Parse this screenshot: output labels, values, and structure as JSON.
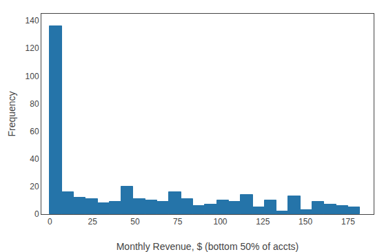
{
  "chart_data": {
    "type": "histogram",
    "bins": [
      0,
      7,
      14,
      21,
      28,
      35,
      42,
      49,
      56,
      63,
      70,
      77,
      84,
      91,
      98,
      105,
      112,
      119,
      126,
      133,
      140,
      147,
      154,
      161,
      168,
      175,
      182
    ],
    "values": [
      136,
      16,
      12,
      11,
      8,
      9,
      20,
      11,
      10,
      9,
      16,
      11,
      6,
      7,
      10,
      9,
      14,
      5,
      10,
      2,
      13,
      3,
      9,
      7,
      6,
      5
    ],
    "color": "#2574a9",
    "xlabel": "Monthly Revenue, $ (bottom 50% of accts)",
    "ylabel": "Frequency",
    "xlim": [
      -5,
      190
    ],
    "ylim": [
      0,
      145
    ],
    "xticks": [
      0,
      25,
      50,
      75,
      100,
      125,
      150,
      175
    ],
    "yticks": [
      0,
      20,
      40,
      60,
      80,
      100,
      120,
      140
    ],
    "grid": false
  }
}
